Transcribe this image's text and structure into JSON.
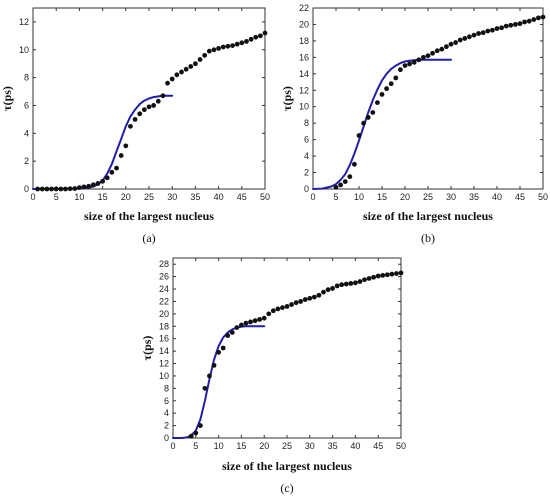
{
  "chart_data": [
    {
      "type": "scatter",
      "panel_label": "(a)",
      "xlabel": "size of the largest nucleus",
      "ylabel": "τ(ps)",
      "xlim": [
        0,
        50
      ],
      "ylim": [
        0,
        13
      ],
      "xticks": [
        0,
        5,
        10,
        15,
        20,
        25,
        30,
        35,
        40,
        45,
        50
      ],
      "yticks": [
        0,
        2,
        4,
        6,
        8,
        10,
        12
      ],
      "grid": false,
      "series": [
        {
          "kind": "points",
          "color": "#111111",
          "x": [
            1,
            2,
            3,
            4,
            5,
            6,
            7,
            8,
            9,
            10,
            11,
            12,
            13,
            14,
            15,
            16,
            17,
            18,
            19,
            20,
            21,
            22,
            23,
            24,
            25,
            26,
            27,
            28,
            29,
            30,
            31,
            32,
            33,
            34,
            35,
            36,
            37,
            38,
            39,
            40,
            41,
            42,
            43,
            44,
            45,
            46,
            47,
            48,
            49,
            50
          ],
          "y": [
            0,
            0,
            0,
            0,
            0,
            0,
            0,
            0.02,
            0.03,
            0.1,
            0.15,
            0.2,
            0.3,
            0.4,
            0.55,
            0.8,
            1.2,
            1.5,
            2.4,
            3.1,
            4.5,
            5.0,
            5.4,
            5.7,
            5.9,
            6.0,
            6.3,
            6.7,
            7.6,
            7.9,
            8.2,
            8.4,
            8.6,
            8.8,
            9.0,
            9.3,
            9.6,
            9.9,
            10.0,
            10.1,
            10.2,
            10.25,
            10.3,
            10.4,
            10.5,
            10.6,
            10.75,
            10.9,
            11.0,
            11.2
          ]
        },
        {
          "kind": "fit-line",
          "color": "#1f1fa8",
          "x": [
            0,
            2,
            4,
            6,
            8,
            10,
            12,
            13,
            14,
            15,
            16,
            17,
            18,
            19,
            20,
            21,
            22,
            23,
            24,
            25,
            26,
            27,
            28,
            29,
            30
          ],
          "y": [
            0,
            0,
            0,
            0,
            0.01,
            0.03,
            0.1,
            0.18,
            0.32,
            0.6,
            1.1,
            1.8,
            2.7,
            3.6,
            4.5,
            5.2,
            5.7,
            6.1,
            6.35,
            6.5,
            6.6,
            6.65,
            6.7,
            6.7,
            6.7
          ]
        }
      ]
    },
    {
      "type": "scatter",
      "panel_label": "(b)",
      "xlabel": "size of the largest nucleus",
      "ylabel": "τ(ps)",
      "xlim": [
        0,
        50
      ],
      "ylim": [
        0,
        22
      ],
      "xticks": [
        0,
        5,
        10,
        15,
        20,
        25,
        30,
        35,
        40,
        45,
        50
      ],
      "yticks": [
        0,
        2,
        4,
        6,
        8,
        10,
        12,
        14,
        16,
        18,
        20,
        22
      ],
      "grid": false,
      "series": [
        {
          "kind": "points",
          "color": "#111111",
          "x": [
            5,
            6,
            7,
            8,
            9,
            10,
            11,
            12,
            13,
            14,
            15,
            16,
            17,
            18,
            19,
            20,
            21,
            22,
            23,
            24,
            25,
            26,
            27,
            28,
            29,
            30,
            31,
            32,
            33,
            34,
            35,
            36,
            37,
            38,
            39,
            40,
            41,
            42,
            43,
            44,
            45,
            46,
            47,
            48,
            49,
            50
          ],
          "y": [
            0.2,
            0.5,
            0.9,
            1.5,
            3.0,
            6.5,
            8.0,
            8.7,
            9.3,
            10.5,
            11.5,
            12.2,
            12.8,
            13.5,
            14.5,
            15.0,
            15.2,
            15.4,
            15.7,
            16.0,
            16.2,
            16.5,
            16.8,
            17.0,
            17.3,
            17.6,
            17.8,
            18.1,
            18.3,
            18.5,
            18.7,
            18.9,
            19.0,
            19.2,
            19.3,
            19.5,
            19.6,
            19.8,
            19.9,
            20.0,
            20.1,
            20.3,
            20.4,
            20.6,
            20.8,
            20.9
          ]
        },
        {
          "kind": "fit-line",
          "color": "#1f1fa8",
          "x": [
            0,
            2,
            4,
            5,
            6,
            7,
            8,
            9,
            10,
            11,
            12,
            13,
            14,
            15,
            16,
            17,
            18,
            19,
            20,
            21,
            22,
            23,
            24,
            25,
            26,
            28,
            30
          ],
          "y": [
            0,
            0.05,
            0.3,
            0.6,
            1.1,
            1.8,
            2.9,
            4.3,
            5.9,
            7.6,
            9.3,
            10.8,
            12.1,
            13.2,
            14.0,
            14.6,
            15.0,
            15.3,
            15.5,
            15.6,
            15.65,
            15.7,
            15.7,
            15.7,
            15.7,
            15.7,
            15.7
          ]
        }
      ]
    },
    {
      "type": "scatter",
      "panel_label": "(c)",
      "xlabel": "size of the largest nucleus",
      "ylabel": "τ(ps)",
      "xlim": [
        0,
        50
      ],
      "ylim": [
        0,
        29
      ],
      "xticks": [
        0,
        5,
        10,
        15,
        20,
        25,
        30,
        35,
        40,
        45,
        50
      ],
      "yticks": [
        0,
        2,
        4,
        6,
        8,
        10,
        12,
        14,
        16,
        18,
        20,
        22,
        24,
        26,
        28
      ],
      "grid": false,
      "series": [
        {
          "kind": "points",
          "color": "#111111",
          "x": [
            4,
            5,
            6,
            7,
            8,
            9,
            10,
            11,
            12,
            13,
            14,
            15,
            16,
            17,
            18,
            19,
            20,
            21,
            22,
            23,
            24,
            25,
            26,
            27,
            28,
            29,
            30,
            31,
            32,
            33,
            34,
            35,
            36,
            37,
            38,
            39,
            40,
            41,
            42,
            43,
            44,
            45,
            46,
            47,
            48,
            49,
            50
          ],
          "y": [
            0.3,
            0.8,
            2.0,
            8.0,
            10.0,
            11.7,
            13.8,
            14.5,
            16.5,
            17.0,
            17.8,
            18.2,
            18.5,
            18.7,
            18.9,
            19.1,
            19.3,
            20.0,
            20.5,
            20.8,
            21.0,
            21.2,
            21.5,
            21.8,
            22.0,
            22.3,
            22.5,
            22.7,
            23.0,
            23.5,
            23.9,
            24.1,
            24.5,
            24.7,
            24.8,
            24.9,
            25.0,
            25.2,
            25.5,
            25.7,
            25.9,
            26.1,
            26.2,
            26.3,
            26.4,
            26.5,
            26.6
          ]
        },
        {
          "kind": "fit-line",
          "color": "#1f1fa8",
          "x": [
            0,
            2,
            3,
            4,
            5,
            6,
            7,
            8,
            9,
            10,
            11,
            12,
            13,
            14,
            15,
            16,
            17,
            18,
            19,
            20
          ],
          "y": [
            0,
            0,
            0.1,
            0.4,
            1.2,
            3.0,
            6.0,
            9.5,
            12.6,
            14.8,
            16.2,
            17.0,
            17.5,
            17.8,
            17.95,
            18.0,
            18.0,
            18.0,
            18.0,
            18.0
          ]
        }
      ]
    }
  ]
}
